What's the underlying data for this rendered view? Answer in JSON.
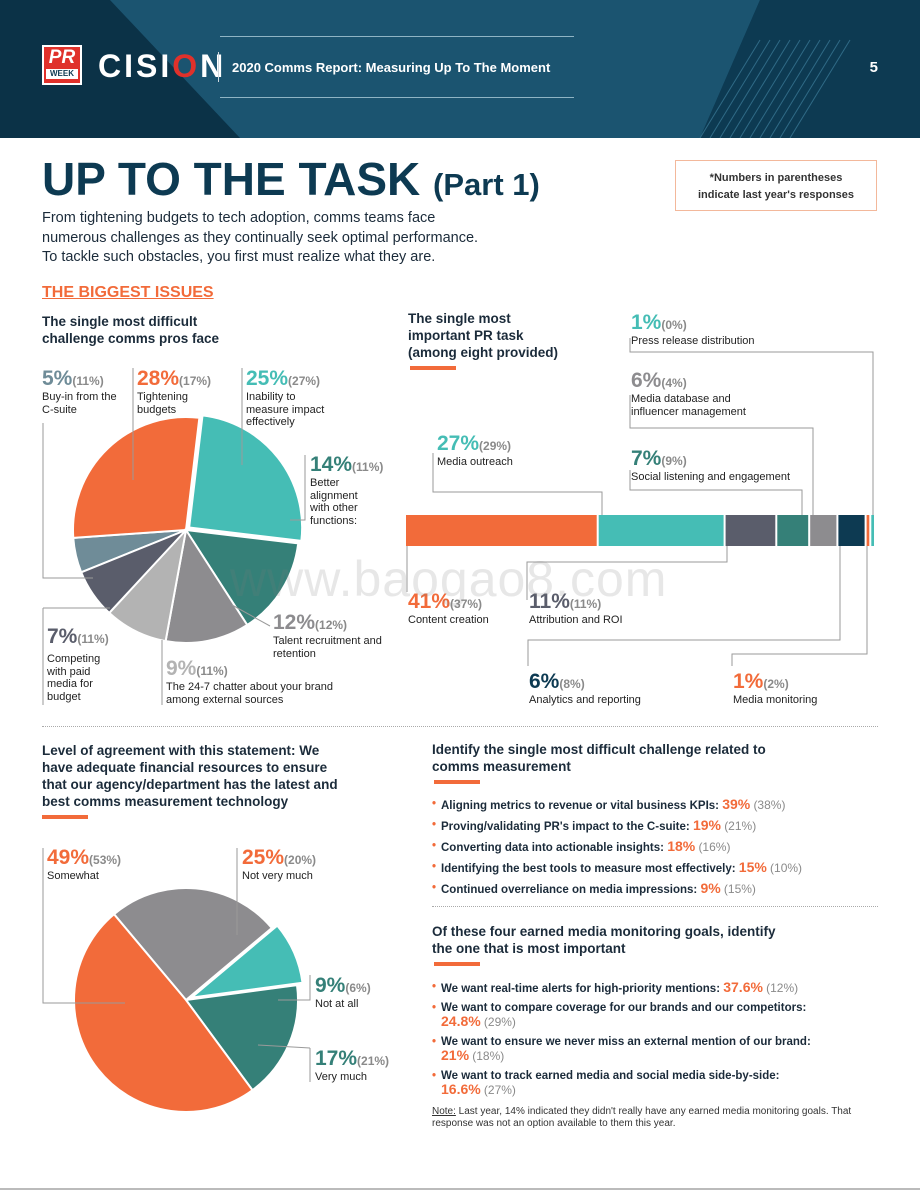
{
  "header": {
    "logo_pr": "PR",
    "logo_week": "WEEK",
    "brand": "CISION",
    "report_title": "2020 Comms Report: Measuring Up To The Moment",
    "page_number": "5"
  },
  "title": {
    "main": "UP TO THE TASK",
    "part": "(Part 1)"
  },
  "note": {
    "line1": "*Numbers in parentheses",
    "line2": "indicate last year's responses"
  },
  "intro": {
    "line1": "From tightening budgets to tech adoption, comms teams face",
    "line2": "numerous challenges as they continually seek optimal performance.",
    "line3": "To tackle such obstacles, you first must realize what they are."
  },
  "section_heading": "THE BIGGEST ISSUES",
  "watermark": "www.baogao8.com",
  "colors": {
    "orange": "#f26b3a",
    "teal": "#45bdb5",
    "dark_teal": "#358078",
    "navy": "#0d3a52",
    "slate": "#5a5d6b",
    "gray": "#8d8c8f",
    "light_gray": "#b3b3b3",
    "steel": "#6f8c98"
  },
  "chart_data": [
    {
      "type": "pie",
      "title": "The single most difficult challenge comms pros face",
      "slices": [
        {
          "pct": "5%",
          "prev": "(11%)",
          "value": 5,
          "label": "Buy-in from the C-suite"
        },
        {
          "pct": "28%",
          "prev": "(17%)",
          "value": 28,
          "label": "Tightening budgets"
        },
        {
          "pct": "25%",
          "prev": "(27%)",
          "value": 25,
          "label": "Inability to measure impact effectively"
        },
        {
          "pct": "14%",
          "prev": "(11%)",
          "value": 14,
          "label": "Better alignment with other functions:"
        },
        {
          "pct": "12%",
          "prev": "(12%)",
          "value": 12,
          "label": "Talent recruitment and retention"
        },
        {
          "pct": "9%",
          "prev": "(11%)",
          "value": 9,
          "label": "The 24-7 chatter about your brand among external sources"
        },
        {
          "pct": "7%",
          "prev": "(11%)",
          "value": 7,
          "label": "Competing with paid media for budget"
        }
      ]
    },
    {
      "type": "bar",
      "title": "The single most important PR task (among eight provided)",
      "segments": [
        {
          "pct": "41%",
          "prev": "(37%)",
          "value": 41,
          "label": "Content creation"
        },
        {
          "pct": "27%",
          "prev": "(29%)",
          "value": 27,
          "label": "Media outreach"
        },
        {
          "pct": "11%",
          "prev": "(11%)",
          "value": 11,
          "label": "Attribution and ROI"
        },
        {
          "pct": "7%",
          "prev": "(9%)",
          "value": 7,
          "label": "Social listening and engagement"
        },
        {
          "pct": "6%",
          "prev": "(4%)",
          "value": 6,
          "label": "Media database and influencer management"
        },
        {
          "pct": "6%",
          "prev": "(8%)",
          "value": 6,
          "label": "Analytics and reporting"
        },
        {
          "pct": "1%",
          "prev": "(2%)",
          "value": 1,
          "label": "Media monitoring"
        },
        {
          "pct": "1%",
          "prev": "(0%)",
          "value": 1,
          "label": "Press release distribution"
        }
      ]
    },
    {
      "type": "pie",
      "title": "Level of agreement with this statement: We have adequate financial resources to ensure that our agency/department has the latest and best comms measurement technology",
      "slices": [
        {
          "pct": "25%",
          "prev": "(20%)",
          "value": 25,
          "label": "Not very much"
        },
        {
          "pct": "9%",
          "prev": "(6%)",
          "value": 9,
          "label": "Not at all"
        },
        {
          "pct": "17%",
          "prev": "(21%)",
          "value": 17,
          "label": "Very much"
        },
        {
          "pct": "49%",
          "prev": "(53%)",
          "value": 49,
          "label": "Somewhat"
        }
      ]
    }
  ],
  "q1_head": {
    "line1": "The single most difficult",
    "line2": "challenge comms pros face"
  },
  "q2_head": {
    "line1": "The single most",
    "line2": "important PR task",
    "line3": "(among eight provided)"
  },
  "q3_head": {
    "line1": "Level of agreement with this statement: We",
    "line2": "have adequate financial resources to ensure",
    "line3": "that our agency/department has the latest and",
    "line4": "best comms measurement technology"
  },
  "q4": {
    "line1": "Identify the single most difficult challenge related to",
    "line2": "comms measurement",
    "items": [
      {
        "text": "Aligning metrics to revenue or vital business KPIs:",
        "value": "39%",
        "prev": "(38%)"
      },
      {
        "text": "Proving/validating PR's impact to the C-suite:",
        "value": "19%",
        "prev": "(21%)"
      },
      {
        "text": "Converting data into actionable insights:",
        "value": "18%",
        "prev": "(16%)"
      },
      {
        "text": "Identifying the best tools to measure most effectively:",
        "value": "15%",
        "prev": "(10%)"
      },
      {
        "text": "Continued overreliance on media impressions:",
        "value": "9%",
        "prev": "(15%)"
      }
    ]
  },
  "q5": {
    "line1": "Of these four earned media monitoring goals, identify",
    "line2": "the one that is most important",
    "items": [
      {
        "text": "We want real-time alerts for high-priority mentions:",
        "value": "37.6%",
        "prev": "(12%)"
      },
      {
        "text": "We want to compare coverage for our brands and our competitors:",
        "value": "24.8%",
        "prev": "(29%)"
      },
      {
        "text": "We want to ensure we never miss an external mention of our brand:",
        "value": "21%",
        "prev": "(18%)"
      },
      {
        "text": "We want to track earned media and social media side-by-side:",
        "value": "16.6%",
        "prev": "(27%)"
      }
    ]
  },
  "footnote": {
    "label": "Note:",
    "text": " Last year, 14% indicated they didn't really have any earned media monitoring goals. That response was not an option available to them this year."
  }
}
